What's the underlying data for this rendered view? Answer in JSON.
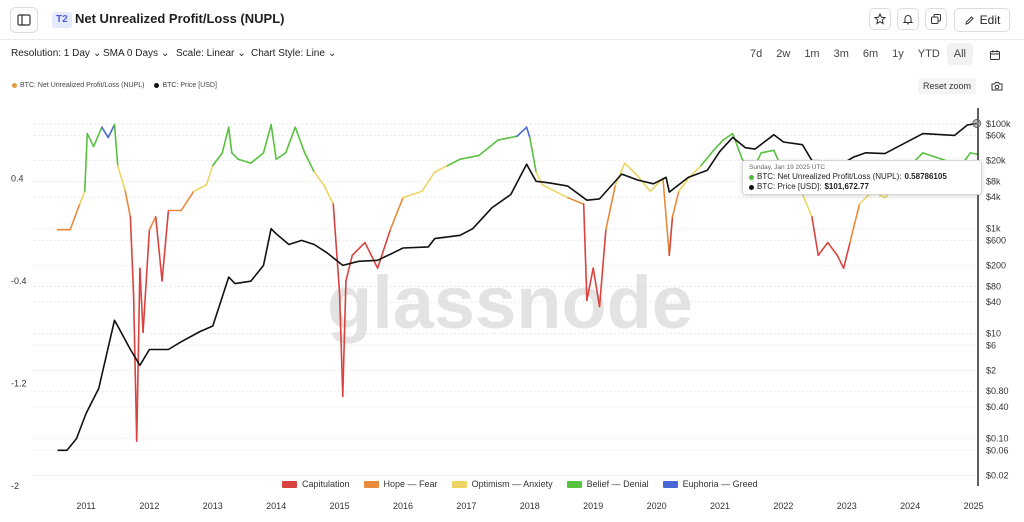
{
  "header": {
    "tier_badge": "T2",
    "title": "Net Unrealized Profit/Loss (NUPL)",
    "edit_label": "Edit"
  },
  "toolbar": {
    "resolution": "Resolution: 1 Day",
    "sma": "SMA 0 Days",
    "scale": "Scale: Linear",
    "chart_style": "Chart Style: Line",
    "ranges": [
      "7d",
      "2w",
      "1m",
      "3m",
      "6m",
      "1y",
      "YTD",
      "All"
    ],
    "active_range": "All"
  },
  "legend": {
    "nupl": "BTC: Net Unrealized Profit/Loss (NUPL)",
    "price": "BTC: Price [USD]",
    "nupl_color": "#e59a44",
    "price_color": "#111111"
  },
  "controls": {
    "reset_zoom": "Reset zoom"
  },
  "watermark": "glassnode",
  "tooltip": {
    "date": "Sunday, Jan 19 2025 UTC",
    "nupl_label": "BTC: Net Unrealized Profit/Loss (NUPL):",
    "nupl_value": "0.58786105",
    "price_label": "BTC: Price [USD]:",
    "price_value": "$101,672.77",
    "nupl_dot_color": "#4cbf3c",
    "price_dot_color": "#111111"
  },
  "bands": [
    {
      "label": "Capitulation",
      "color": "#d9433f"
    },
    {
      "label": "Hope — Fear",
      "color": "#e98a3a"
    },
    {
      "label": "Optimism — Anxiety",
      "color": "#ecd563"
    },
    {
      "label": "Belief — Denial",
      "color": "#58c13e"
    },
    {
      "label": "Euphoria — Greed",
      "color": "#4a67d6"
    }
  ],
  "chart_data": {
    "type": "line",
    "x_ticks": [
      "2011",
      "2012",
      "2013",
      "2014",
      "2015",
      "2016",
      "2017",
      "2018",
      "2019",
      "2020",
      "2021",
      "2022",
      "2023",
      "2024",
      "2025"
    ],
    "left_axis": {
      "ticks": [
        0.4,
        -0.4,
        -1.2,
        -2
      ],
      "tick_labels": [
        "0.4",
        "-0.4",
        "-1.2",
        "-2"
      ],
      "range": [
        -2,
        0.95
      ]
    },
    "right_axis": {
      "scale": "log",
      "ticks": [
        100000,
        60000,
        20000,
        8000,
        4000,
        1000,
        600,
        200,
        80,
        40,
        10,
        6,
        2,
        0.8,
        0.4,
        0.1,
        0.06,
        0.02
      ],
      "tick_labels": [
        "$100k",
        "$60k",
        "$20k",
        "$8k",
        "$4k",
        "$1k",
        "$600",
        "$200",
        "$80",
        "$40",
        "$10",
        "$6",
        "$2",
        "$0.80",
        "$0.40",
        "$0.10",
        "$0.06",
        "$0.02"
      ],
      "range": [
        0.0125,
        200000
      ]
    },
    "band_thresholds": [
      0,
      0.25,
      0.5,
      0.75
    ],
    "series": [
      {
        "name": "BTC: Net Unrealized Profit/Loss (NUPL)",
        "axis": "left",
        "points": [
          [
            2010.55,
            0.0
          ],
          [
            2010.75,
            0.0
          ],
          [
            2010.9,
            0.2
          ],
          [
            2010.98,
            0.3
          ],
          [
            2011.02,
            0.75
          ],
          [
            2011.12,
            0.65
          ],
          [
            2011.25,
            0.8
          ],
          [
            2011.35,
            0.72
          ],
          [
            2011.45,
            0.82
          ],
          [
            2011.5,
            0.5
          ],
          [
            2011.62,
            0.3
          ],
          [
            2011.7,
            0.1
          ],
          [
            2011.75,
            -0.5
          ],
          [
            2011.8,
            -1.65
          ],
          [
            2011.85,
            -0.3
          ],
          [
            2011.9,
            -0.8
          ],
          [
            2012.0,
            0.0
          ],
          [
            2012.1,
            0.1
          ],
          [
            2012.2,
            -0.4
          ],
          [
            2012.3,
            0.15
          ],
          [
            2012.5,
            0.15
          ],
          [
            2012.7,
            0.3
          ],
          [
            2012.9,
            0.35
          ],
          [
            2013.0,
            0.5
          ],
          [
            2013.15,
            0.6
          ],
          [
            2013.25,
            0.8
          ],
          [
            2013.3,
            0.6
          ],
          [
            2013.4,
            0.55
          ],
          [
            2013.6,
            0.52
          ],
          [
            2013.8,
            0.6
          ],
          [
            2013.92,
            0.82
          ],
          [
            2014.0,
            0.55
          ],
          [
            2014.15,
            0.6
          ],
          [
            2014.3,
            0.8
          ],
          [
            2014.45,
            0.6
          ],
          [
            2014.6,
            0.45
          ],
          [
            2014.75,
            0.35
          ],
          [
            2014.9,
            0.2
          ],
          [
            2015.0,
            -0.5
          ],
          [
            2015.05,
            -1.3
          ],
          [
            2015.1,
            -0.4
          ],
          [
            2015.2,
            -0.2
          ],
          [
            2015.4,
            -0.1
          ],
          [
            2015.6,
            -0.3
          ],
          [
            2015.8,
            0.0
          ],
          [
            2016.0,
            0.25
          ],
          [
            2016.3,
            0.3
          ],
          [
            2016.5,
            0.45
          ],
          [
            2016.7,
            0.5
          ],
          [
            2016.9,
            0.55
          ],
          [
            2017.2,
            0.58
          ],
          [
            2017.5,
            0.7
          ],
          [
            2017.8,
            0.73
          ],
          [
            2017.95,
            0.8
          ],
          [
            2018.0,
            0.72
          ],
          [
            2018.1,
            0.45
          ],
          [
            2018.2,
            0.35
          ],
          [
            2018.4,
            0.3
          ],
          [
            2018.6,
            0.25
          ],
          [
            2018.85,
            0.2
          ],
          [
            2018.9,
            -0.55
          ],
          [
            2019.0,
            -0.3
          ],
          [
            2019.1,
            -0.6
          ],
          [
            2019.2,
            0.0
          ],
          [
            2019.35,
            0.35
          ],
          [
            2019.5,
            0.52
          ],
          [
            2019.7,
            0.42
          ],
          [
            2019.9,
            0.3
          ],
          [
            2020.1,
            0.4
          ],
          [
            2020.2,
            -0.2
          ],
          [
            2020.25,
            0.1
          ],
          [
            2020.35,
            0.3
          ],
          [
            2020.5,
            0.4
          ],
          [
            2020.7,
            0.5
          ],
          [
            2020.9,
            0.62
          ],
          [
            2021.05,
            0.7
          ],
          [
            2021.2,
            0.75
          ],
          [
            2021.35,
            0.55
          ],
          [
            2021.5,
            0.45
          ],
          [
            2021.65,
            0.6
          ],
          [
            2021.85,
            0.62
          ],
          [
            2022.0,
            0.45
          ],
          [
            2022.2,
            0.4
          ],
          [
            2022.45,
            0.1
          ],
          [
            2022.55,
            -0.2
          ],
          [
            2022.7,
            -0.1
          ],
          [
            2022.85,
            -0.2
          ],
          [
            2022.95,
            -0.3
          ],
          [
            2023.05,
            -0.1
          ],
          [
            2023.2,
            0.2
          ],
          [
            2023.4,
            0.3
          ],
          [
            2023.6,
            0.25
          ],
          [
            2023.8,
            0.35
          ],
          [
            2024.0,
            0.5
          ],
          [
            2024.2,
            0.6
          ],
          [
            2024.5,
            0.55
          ],
          [
            2024.8,
            0.5
          ],
          [
            2024.95,
            0.6
          ],
          [
            2025.05,
            0.59
          ]
        ]
      },
      {
        "name": "BTC: Price [USD]",
        "axis": "right",
        "points": [
          [
            2010.55,
            0.06
          ],
          [
            2010.7,
            0.06
          ],
          [
            2010.85,
            0.1
          ],
          [
            2011.0,
            0.3
          ],
          [
            2011.2,
            0.9
          ],
          [
            2011.45,
            18
          ],
          [
            2011.5,
            14
          ],
          [
            2011.7,
            5
          ],
          [
            2011.85,
            2.5
          ],
          [
            2012.0,
            5
          ],
          [
            2012.3,
            5
          ],
          [
            2012.5,
            7
          ],
          [
            2012.8,
            11
          ],
          [
            2013.0,
            14
          ],
          [
            2013.25,
            120
          ],
          [
            2013.35,
            90
          ],
          [
            2013.6,
            100
          ],
          [
            2013.8,
            200
          ],
          [
            2013.92,
            1000
          ],
          [
            2014.0,
            800
          ],
          [
            2014.2,
            500
          ],
          [
            2014.4,
            600
          ],
          [
            2014.6,
            500
          ],
          [
            2014.8,
            350
          ],
          [
            2015.05,
            200
          ],
          [
            2015.3,
            240
          ],
          [
            2015.6,
            250
          ],
          [
            2015.85,
            350
          ],
          [
            2016.0,
            430
          ],
          [
            2016.4,
            450
          ],
          [
            2016.5,
            650
          ],
          [
            2016.9,
            750
          ],
          [
            2017.1,
            1000
          ],
          [
            2017.4,
            2500
          ],
          [
            2017.7,
            4500
          ],
          [
            2017.95,
            17000
          ],
          [
            2018.1,
            8000
          ],
          [
            2018.3,
            7500
          ],
          [
            2018.6,
            6500
          ],
          [
            2018.9,
            3500
          ],
          [
            2019.1,
            3700
          ],
          [
            2019.45,
            11000
          ],
          [
            2019.7,
            8500
          ],
          [
            2019.95,
            7200
          ],
          [
            2020.15,
            9500
          ],
          [
            2020.2,
            5000
          ],
          [
            2020.5,
            9500
          ],
          [
            2020.8,
            13000
          ],
          [
            2021.0,
            30000
          ],
          [
            2021.2,
            55000
          ],
          [
            2021.4,
            35000
          ],
          [
            2021.55,
            33000
          ],
          [
            2021.85,
            62000
          ],
          [
            2022.0,
            45000
          ],
          [
            2022.3,
            40000
          ],
          [
            2022.45,
            20000
          ],
          [
            2022.7,
            19500
          ],
          [
            2022.9,
            16500
          ],
          [
            2023.1,
            23000
          ],
          [
            2023.3,
            28000
          ],
          [
            2023.6,
            27000
          ],
          [
            2023.9,
            42000
          ],
          [
            2024.2,
            65000
          ],
          [
            2024.5,
            62000
          ],
          [
            2024.7,
            60000
          ],
          [
            2024.9,
            95000
          ],
          [
            2025.05,
            101672
          ]
        ]
      }
    ]
  }
}
